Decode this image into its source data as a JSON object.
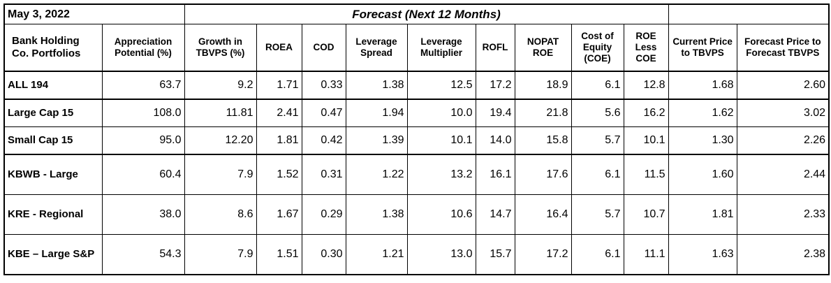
{
  "date": "May 3, 2022",
  "forecast_title": "Forecast (Next 12 Months)",
  "headers": {
    "portfolio": "Bank Holding Co. Portfolios",
    "appreciation": "Appreciation Potential (%)",
    "growth": "Growth in TBVPS (%)",
    "roea": "ROEA",
    "cod": "COD",
    "lev_spread": "Leverage Spread",
    "lev_mult": "Leverage Multiplier",
    "rofl": "ROFL",
    "nopat": "NOPAT ROE",
    "coe": "Cost of Equity (COE)",
    "roe_less": "ROE Less COE",
    "price_tbvps": "Current Price to TBVPS",
    "forecast_price": "Forecast Price to Forecast TBVPS"
  },
  "rows": [
    {
      "name": "ALL 194",
      "appreciation": "63.7",
      "growth": "9.2",
      "roea": "1.71",
      "cod": "0.33",
      "lev_spread": "1.38",
      "lev_mult": "12.5",
      "rofl": "17.2",
      "nopat": "18.9",
      "coe": "6.1",
      "roe_less": "12.8",
      "price_tbvps": "1.68",
      "forecast_price": "2.60"
    },
    {
      "name": "Large Cap 15",
      "appreciation": "108.0",
      "growth": "11.81",
      "roea": "2.41",
      "cod": "0.47",
      "lev_spread": "1.94",
      "lev_mult": "10.0",
      "rofl": "19.4",
      "nopat": "21.8",
      "coe": "5.6",
      "roe_less": "16.2",
      "price_tbvps": "1.62",
      "forecast_price": "3.02"
    },
    {
      "name": "Small Cap 15",
      "appreciation": "95.0",
      "growth": "12.20",
      "roea": "1.81",
      "cod": "0.42",
      "lev_spread": "1.39",
      "lev_mult": "10.1",
      "rofl": "14.0",
      "nopat": "15.8",
      "coe": "5.7",
      "roe_less": "10.1",
      "price_tbvps": "1.30",
      "forecast_price": "2.26"
    },
    {
      "name": "KBWB - Large",
      "appreciation": "60.4",
      "growth": "7.9",
      "roea": "1.52",
      "cod": "0.31",
      "lev_spread": "1.22",
      "lev_mult": "13.2",
      "rofl": "16.1",
      "nopat": "17.6",
      "coe": "6.1",
      "roe_less": "11.5",
      "price_tbvps": "1.60",
      "forecast_price": "2.44"
    },
    {
      "name": "KRE - Regional",
      "appreciation": "38.0",
      "growth": "8.6",
      "roea": "1.67",
      "cod": "0.29",
      "lev_spread": "1.38",
      "lev_mult": "10.6",
      "rofl": "14.7",
      "nopat": "16.4",
      "coe": "5.7",
      "roe_less": "10.7",
      "price_tbvps": "1.81",
      "forecast_price": "2.33"
    },
    {
      "name": "KBE – Large S&P",
      "appreciation": "54.3",
      "growth": "7.9",
      "roea": "1.51",
      "cod": "0.30",
      "lev_spread": "1.21",
      "lev_mult": "13.0",
      "rofl": "15.7",
      "nopat": "17.2",
      "coe": "6.1",
      "roe_less": "11.1",
      "price_tbvps": "1.63",
      "forecast_price": "2.38"
    }
  ]
}
